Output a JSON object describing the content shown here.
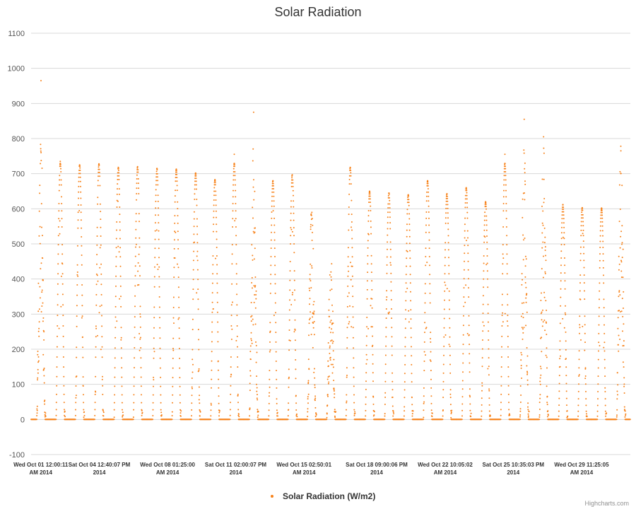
{
  "chart_data": {
    "type": "scatter",
    "title": "Solar Radiation",
    "xlabel": "",
    "ylabel": "",
    "ylim": [
      -100,
      1100
    ],
    "y_ticks": [
      -100,
      0,
      100,
      200,
      300,
      400,
      500,
      600,
      700,
      800,
      900,
      1000,
      1100
    ],
    "x_range": [
      "2014-10-01 00:00",
      "2014-10-31 23:59"
    ],
    "x_ticks": [
      {
        "at": "2014-10-01 12:00:11",
        "line1": "Wed Oct 01 12:00:11",
        "line2": "AM 2014"
      },
      {
        "at": "2014-10-04 12:40:07",
        "line1": "Sat Oct 04 12:40:07 PM",
        "line2": "2014"
      },
      {
        "at": "2014-10-08 01:25:00",
        "line1": "Wed Oct 08 01:25:00",
        "line2": "AM 2014"
      },
      {
        "at": "2014-10-11 14:00:07",
        "line1": "Sat Oct 11 02:00:07 PM",
        "line2": "2014"
      },
      {
        "at": "2014-10-15 02:50:01",
        "line1": "Wed Oct 15 02:50:01",
        "line2": "AM 2014"
      },
      {
        "at": "2014-10-18 21:00:06",
        "line1": "Sat Oct 18 09:00:06 PM",
        "line2": "2014"
      },
      {
        "at": "2014-10-22 10:05:02",
        "line1": "Wed Oct 22 10:05:02",
        "line2": "AM 2014"
      },
      {
        "at": "2014-10-25 22:35:03",
        "line1": "Sat Oct 25 10:35:03 PM",
        "line2": "2014"
      },
      {
        "at": "2014-10-29 11:25:05",
        "line1": "Wed Oct 29 11:25:05",
        "line2": "AM 2014"
      }
    ],
    "grid": true,
    "legend_position": "bottom-center",
    "series": [
      {
        "name": "Solar Radiation (W/m2)",
        "color": "#f7821a",
        "daily_peaks": [
          {
            "date": "2014-10-01",
            "peak": 965
          },
          {
            "date": "2014-10-02",
            "peak": 735
          },
          {
            "date": "2014-10-03",
            "peak": 725
          },
          {
            "date": "2014-10-04",
            "peak": 728
          },
          {
            "date": "2014-10-05",
            "peak": 718
          },
          {
            "date": "2014-10-06",
            "peak": 720
          },
          {
            "date": "2014-10-07",
            "peak": 715
          },
          {
            "date": "2014-10-08",
            "peak": 713
          },
          {
            "date": "2014-10-09",
            "peak": 702
          },
          {
            "date": "2014-10-10",
            "peak": 683
          },
          {
            "date": "2014-10-11",
            "peak": 755
          },
          {
            "date": "2014-10-12",
            "peak": 875
          },
          {
            "date": "2014-10-13",
            "peak": 680
          },
          {
            "date": "2014-10-14",
            "peak": 697
          },
          {
            "date": "2014-10-15",
            "peak": 570
          },
          {
            "date": "2014-10-16",
            "peak": 420
          },
          {
            "date": "2014-10-17",
            "peak": 718
          },
          {
            "date": "2014-10-18",
            "peak": 650
          },
          {
            "date": "2014-10-19",
            "peak": 645
          },
          {
            "date": "2014-10-20",
            "peak": 640
          },
          {
            "date": "2014-10-21",
            "peak": 680
          },
          {
            "date": "2014-10-22",
            "peak": 643
          },
          {
            "date": "2014-10-23",
            "peak": 660
          },
          {
            "date": "2014-10-24",
            "peak": 620
          },
          {
            "date": "2014-10-25",
            "peak": 755
          },
          {
            "date": "2014-10-26",
            "peak": 855
          },
          {
            "date": "2014-10-27",
            "peak": 805
          },
          {
            "date": "2014-10-28",
            "peak": 612
          },
          {
            "date": "2014-10-29",
            "peak": 603
          },
          {
            "date": "2014-10-30",
            "peak": 602
          },
          {
            "date": "2014-10-31",
            "peak": 765
          }
        ]
      }
    ]
  },
  "credits": "Highcharts.com"
}
